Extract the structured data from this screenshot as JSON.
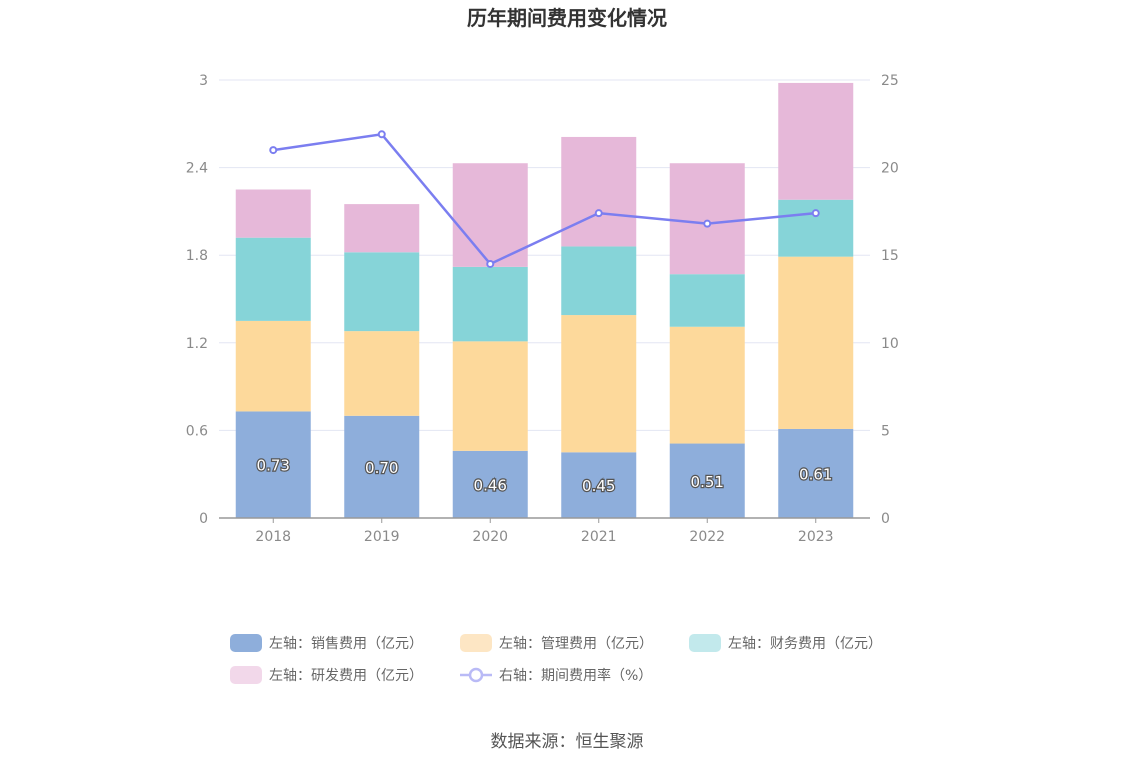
{
  "chart_data": {
    "type": "bar",
    "title": "历年期间费用变化情况",
    "categories": [
      "2018",
      "2019",
      "2020",
      "2021",
      "2022",
      "2023"
    ],
    "series": [
      {
        "name": "左轴：销售费用（亿元）",
        "axis": "left",
        "type": "bar",
        "color": "#8eaedb",
        "values": [
          0.73,
          0.7,
          0.46,
          0.45,
          0.51,
          0.61
        ]
      },
      {
        "name": "左轴：管理费用（亿元）",
        "axis": "left",
        "type": "bar",
        "color": "#fdd99b",
        "values": [
          0.62,
          0.58,
          0.75,
          0.94,
          0.8,
          1.18
        ]
      },
      {
        "name": "左轴：财务费用（亿元）",
        "axis": "left",
        "type": "bar",
        "color": "#86d4d8",
        "values": [
          0.57,
          0.54,
          0.51,
          0.47,
          0.36,
          0.39
        ]
      },
      {
        "name": "左轴：研发费用（亿元）",
        "axis": "left",
        "type": "bar",
        "color": "#e6b8d9",
        "values": [
          0.33,
          0.33,
          0.71,
          0.75,
          0.76,
          0.8
        ]
      },
      {
        "name": "右轴：期间费用率（%）",
        "axis": "right",
        "type": "line",
        "color": "#7b7ef0",
        "values": [
          21.0,
          21.9,
          14.5,
          17.4,
          16.8,
          17.4
        ]
      }
    ],
    "data_labels_series": 0,
    "left_axis": {
      "min": 0,
      "max": 3,
      "ticks": [
        "0",
        "0.6",
        "1.2",
        "1.8",
        "2.4",
        "3"
      ]
    },
    "right_axis": {
      "min": 0,
      "max": 25,
      "ticks": [
        "0",
        "5",
        "10",
        "15",
        "20",
        "25"
      ]
    },
    "grid": true,
    "legend_position": "bottom"
  },
  "legend": [
    {
      "label": "左轴：销售费用（亿元）",
      "color": "#8eaedb",
      "kind": "rect"
    },
    {
      "label": "左轴：管理费用（亿元）",
      "color": "#fde6c4",
      "kind": "rect"
    },
    {
      "label": "左轴：财务费用（亿元）",
      "color": "#c2e9ec",
      "kind": "rect"
    },
    {
      "label": "左轴：研发费用（亿元）",
      "color": "#f2d8ea",
      "kind": "rect"
    },
    {
      "label": "右轴：期间费用率（%）",
      "color": "#b9baf6",
      "kind": "line"
    }
  ],
  "source": "数据来源：恒生聚源"
}
